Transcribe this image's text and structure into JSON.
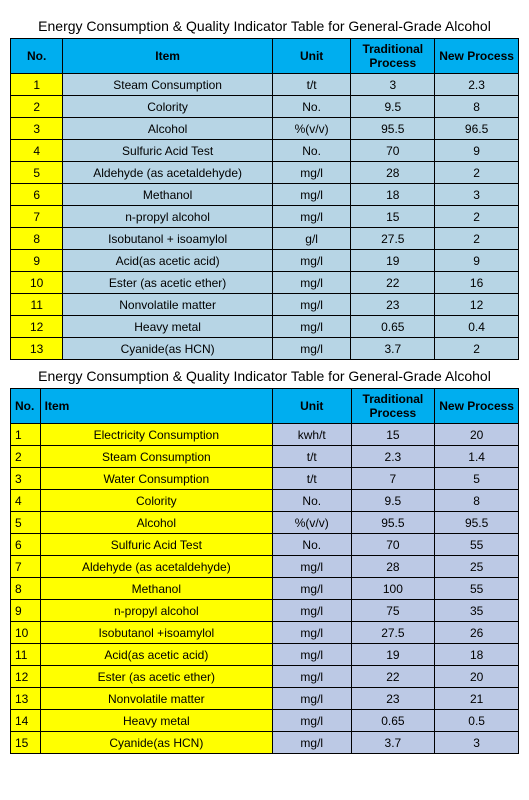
{
  "table1": {
    "title": "Energy Consumption & Quality Indicator Table for General-Grade Alcohol",
    "header_bg": "#00aeef",
    "no_col_bg": "#ffff00",
    "data_bg": "#b7d5e5",
    "columns": {
      "no": "No.",
      "item": "Item",
      "unit": "Unit",
      "trad": "Traditional Process",
      "new": "New Process"
    },
    "rows": [
      {
        "no": "1",
        "item": "Steam Consumption",
        "unit": "t/t",
        "trad": "3",
        "new": "2.3"
      },
      {
        "no": "2",
        "item": "Colority",
        "unit": "No.",
        "trad": "9.5",
        "new": "8"
      },
      {
        "no": "3",
        "item": "Alcohol",
        "unit": "%(v/v)",
        "trad": "95.5",
        "new": "96.5"
      },
      {
        "no": "4",
        "item": "Sulfuric Acid Test",
        "unit": "No.",
        "trad": "70",
        "new": "9"
      },
      {
        "no": "5",
        "item": "Aldehyde (as acetaldehyde)",
        "unit": "mg/l",
        "trad": "28",
        "new": "2"
      },
      {
        "no": "6",
        "item": "Methanol",
        "unit": "mg/l",
        "trad": "18",
        "new": "3"
      },
      {
        "no": "7",
        "item": "n-propyl alcohol",
        "unit": "mg/l",
        "trad": "15",
        "new": "2"
      },
      {
        "no": "8",
        "item": "Isobutanol + isoamylol",
        "unit": "g/l",
        "trad": "27.5",
        "new": "2"
      },
      {
        "no": "9",
        "item": "Acid(as acetic acid)",
        "unit": "mg/l",
        "trad": "19",
        "new": "9"
      },
      {
        "no": "10",
        "item": "Ester (as acetic ether)",
        "unit": "mg/l",
        "trad": "22",
        "new": "16"
      },
      {
        "no": "11",
        "item": "Nonvolatile matter",
        "unit": "mg/l",
        "trad": "23",
        "new": "12"
      },
      {
        "no": "12",
        "item": "Heavy metal",
        "unit": "mg/l",
        "trad": "0.65",
        "new": "0.4"
      },
      {
        "no": "13",
        "item": "Cyanide(as HCN)",
        "unit": "mg/l",
        "trad": "3.7",
        "new": "2"
      }
    ]
  },
  "table2": {
    "title": "Energy Consumption & Quality Indicator Table for General-Grade Alcohol",
    "header_bg": "#00aeef",
    "no_item_bg": "#ffff00",
    "data_bg": "#bcc9e5",
    "columns": {
      "no": "No.",
      "item": "Item",
      "unit": "Unit",
      "trad": "Traditional Process",
      "new": "New Process"
    },
    "rows": [
      {
        "no": "1",
        "item": "Electricity Consumption",
        "unit": "kwh/t",
        "trad": "15",
        "new": "20"
      },
      {
        "no": "2",
        "item": "Steam Consumption",
        "unit": "t/t",
        "trad": "2.3",
        "new": "1.4"
      },
      {
        "no": "3",
        "item": "Water Consumption",
        "unit": "t/t",
        "trad": "7",
        "new": "5"
      },
      {
        "no": "4",
        "item": "Colority",
        "unit": "No.",
        "trad": "9.5",
        "new": "8"
      },
      {
        "no": "5",
        "item": "Alcohol",
        "unit": "%(v/v)",
        "trad": "95.5",
        "new": "95.5"
      },
      {
        "no": "6",
        "item": "Sulfuric Acid Test",
        "unit": "No.",
        "trad": "70",
        "new": "55"
      },
      {
        "no": "7",
        "item": "Aldehyde (as acetaldehyde)",
        "unit": "mg/l",
        "trad": "28",
        "new": "25"
      },
      {
        "no": "8",
        "item": "Methanol",
        "unit": "mg/l",
        "trad": "100",
        "new": "55"
      },
      {
        "no": "9",
        "item": "n-propyl alcohol",
        "unit": "mg/l",
        "trad": "75",
        "new": "35"
      },
      {
        "no": "10",
        "item": "Isobutanol +isoamylol",
        "unit": "mg/l",
        "trad": "27.5",
        "new": "26"
      },
      {
        "no": "11",
        "item": "Acid(as acetic acid)",
        "unit": "mg/l",
        "trad": "19",
        "new": "18"
      },
      {
        "no": "12",
        "item": "Ester (as acetic ether)",
        "unit": "mg/l",
        "trad": "22",
        "new": "20"
      },
      {
        "no": "13",
        "item": "Nonvolatile matter",
        "unit": "mg/l",
        "trad": "23",
        "new": "21"
      },
      {
        "no": "14",
        "item": "Heavy metal",
        "unit": "mg/l",
        "trad": "0.65",
        "new": "0.5"
      },
      {
        "no": "15",
        "item": "Cyanide(as HCN)",
        "unit": "mg/l",
        "trad": "3.7",
        "new": "3"
      }
    ]
  }
}
